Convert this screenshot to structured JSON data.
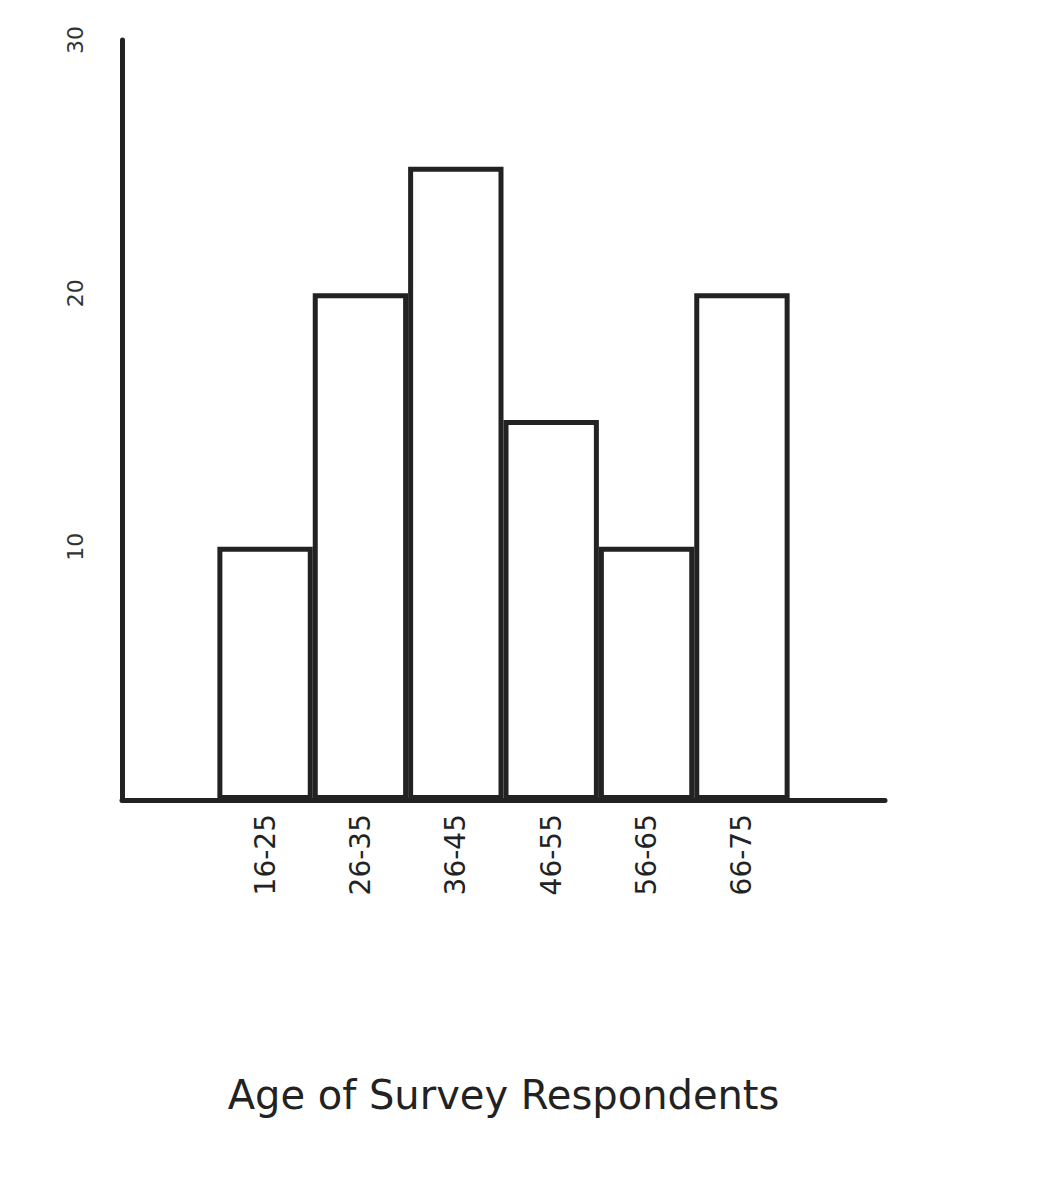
{
  "chart_data": {
    "type": "bar",
    "x_label": "Age of Survey Respondents",
    "categories": [
      null,
      "16-25",
      "26-35",
      "36-45",
      "46-55",
      "56-65",
      "66-75",
      null
    ],
    "values": [
      null,
      10,
      20,
      25,
      15,
      10,
      20,
      null
    ],
    "color": "#ffffff",
    "ylim": [
      0,
      30
    ],
    "yticks": [
      10,
      20,
      30
    ],
    "grid": false
  }
}
